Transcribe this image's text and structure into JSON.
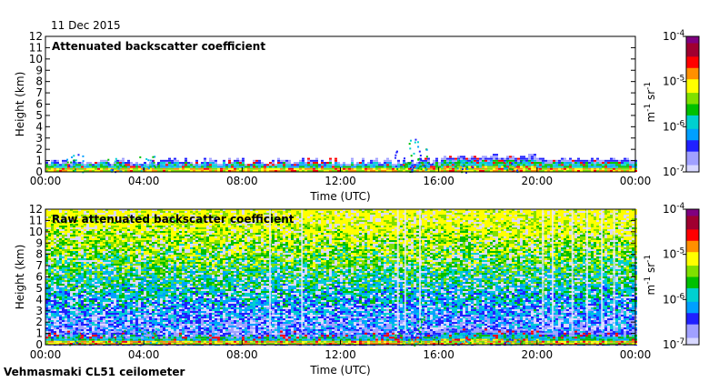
{
  "date_label": "11 Dec 2015",
  "instrument_label": "Vehmasmaki CL51 ceilometer",
  "colors": {
    "colormap": [
      "#d8d8ff",
      "#a0a0ff",
      "#2020ff",
      "#00a0ff",
      "#00d0d0",
      "#00c000",
      "#80e000",
      "#ffff00",
      "#ff9000",
      "#ff0000",
      "#a00030",
      "#800080"
    ]
  },
  "chart_data": [
    {
      "type": "heatmap",
      "title": "Attenuated backscatter coefficient",
      "xlabel": "Time (UTC)",
      "ylabel": "Height (km)",
      "xticks": [
        "00:00",
        "04:00",
        "08:00",
        "12:00",
        "16:00",
        "20:00",
        "00:00"
      ],
      "xlim_hours": [
        0,
        24
      ],
      "yticks": [
        0,
        1,
        2,
        3,
        4,
        5,
        6,
        7,
        8,
        9,
        10,
        11,
        12
      ],
      "ylim_km": [
        0,
        12
      ],
      "colorbar": {
        "labels": [
          "10^-4",
          "10^-5",
          "10^-6",
          "10^-7"
        ],
        "base": "10",
        "exponents": [
          "-4",
          "-5",
          "-6",
          "-7"
        ],
        "unit": "m^-1 sr^-1",
        "unit_parts": [
          "m",
          "-1",
          " sr",
          "-1"
        ]
      },
      "noise_background": false
    },
    {
      "type": "heatmap",
      "title": "Raw attenuated backscatter coefficient",
      "xlabel": "Time (UTC)",
      "ylabel": "Height (km)",
      "xticks": [
        "00:00",
        "04:00",
        "08:00",
        "12:00",
        "16:00",
        "20:00",
        "00:00"
      ],
      "xlim_hours": [
        0,
        24
      ],
      "yticks": [
        0,
        1,
        2,
        3,
        4,
        5,
        6,
        7,
        8,
        9,
        10,
        11,
        12
      ],
      "ylim_km": [
        0,
        12
      ],
      "colorbar": {
        "labels": [
          "10^-4",
          "10^-5",
          "10^-6",
          "10^-7"
        ],
        "base": "10",
        "exponents": [
          "-4",
          "-5",
          "-6",
          "-7"
        ],
        "unit": "m^-1 sr^-1",
        "unit_parts": [
          "m",
          "-1",
          " sr",
          "-1"
        ]
      },
      "noise_background": true
    }
  ]
}
